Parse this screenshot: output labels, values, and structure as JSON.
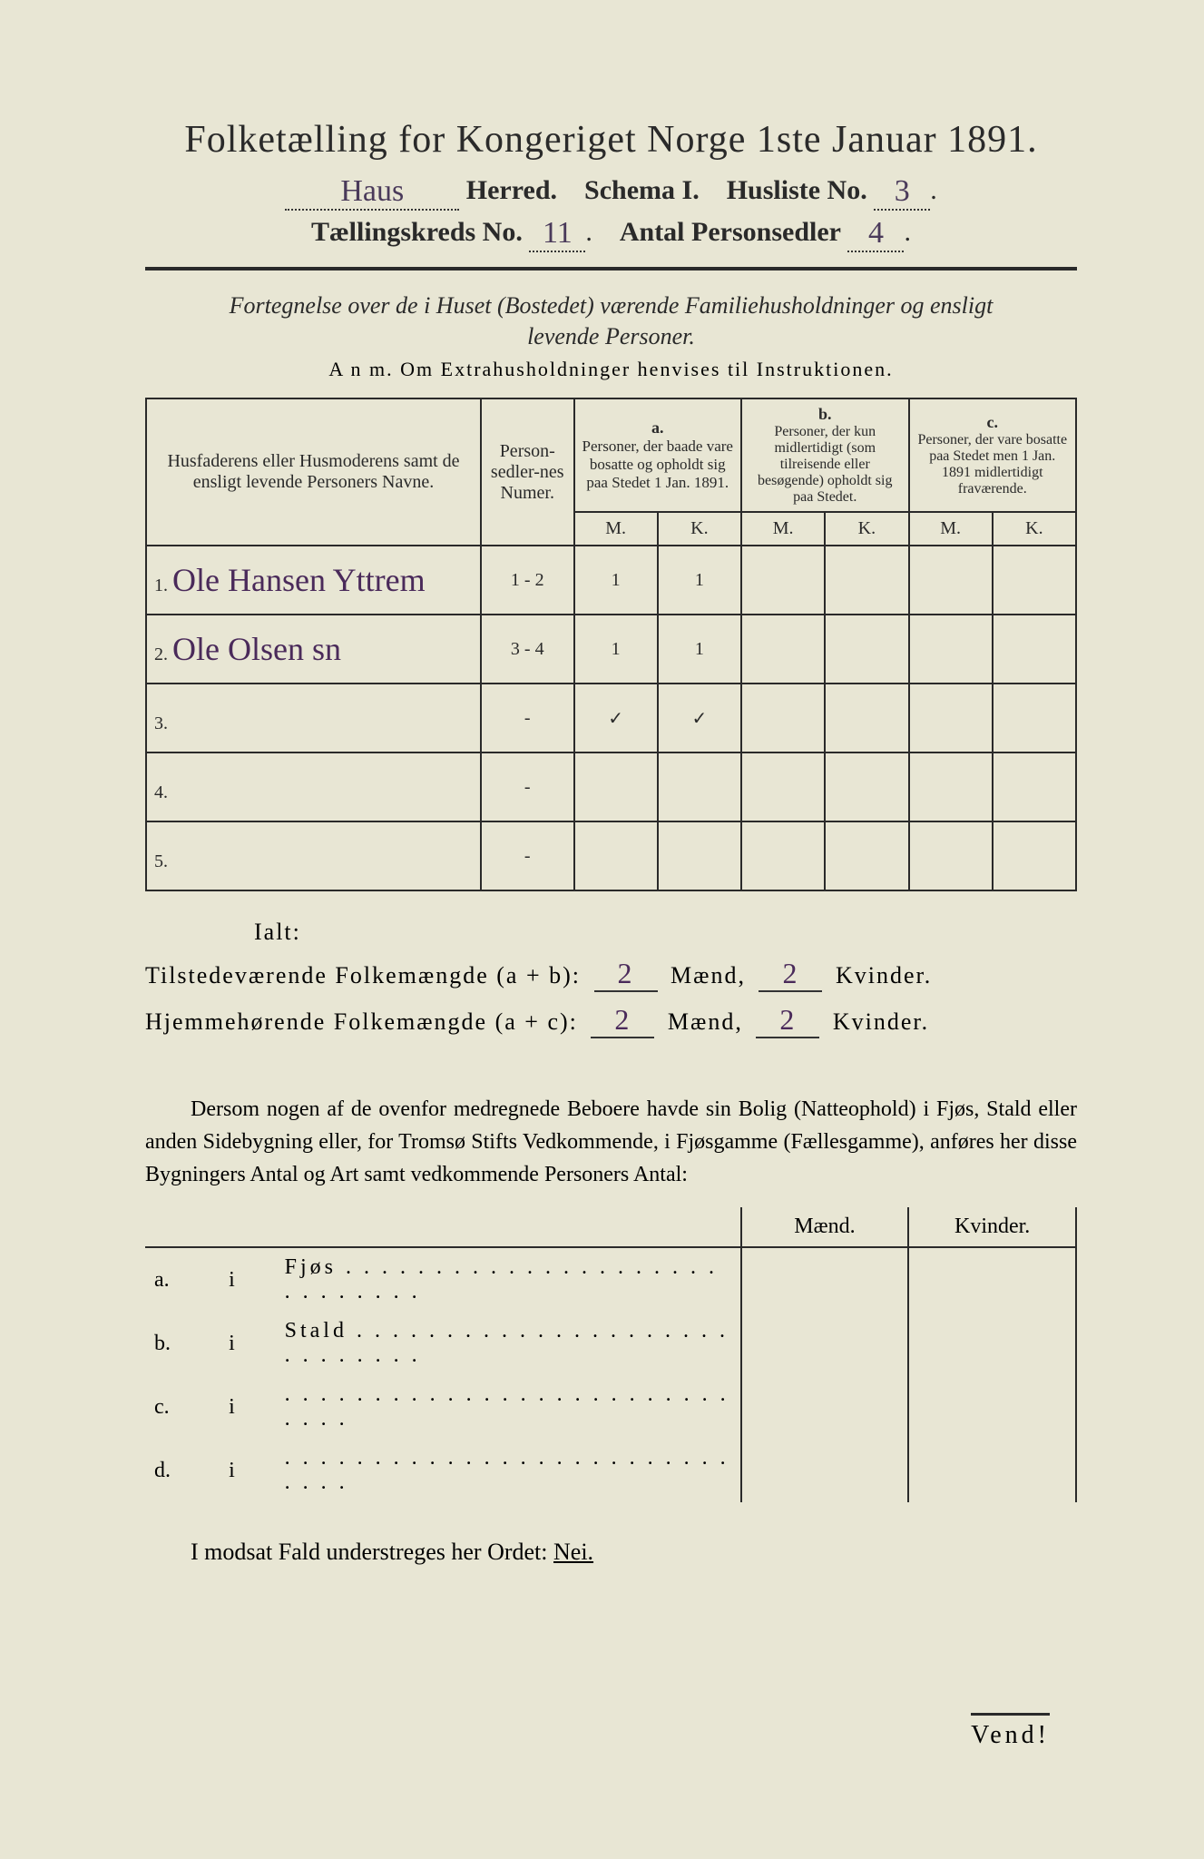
{
  "title": "Folketælling for Kongeriget Norge 1ste Januar 1891.",
  "header": {
    "herred_value": "Haus",
    "herred_label": "Herred.",
    "schema_label": "Schema I.",
    "husliste_label": "Husliste No.",
    "husliste_value": "3",
    "kreds_label": "Tællingskreds No.",
    "kreds_value": "11",
    "antal_label": "Antal Personsedler",
    "antal_value": "4"
  },
  "subtitle1": "Fortegnelse over de i Huset (Bostedet) værende Familiehusholdninger og ensligt",
  "subtitle2": "levende Personer.",
  "anm": "A n m.  Om Extrahusholdninger henvises til Instruktionen.",
  "columns": {
    "name": "Husfaderens eller Husmoderens samt de ensligt levende Personers Navne.",
    "sedler": "Person-sedler-nes Numer.",
    "a_label": "a.",
    "a_text": "Personer, der baade vare bosatte og opholdt sig paa Stedet 1 Jan. 1891.",
    "b_label": "b.",
    "b_text": "Personer, der kun midlertidigt (som tilreisende eller besøgende) opholdt sig paa Stedet.",
    "c_label": "c.",
    "c_text": "Personer, der vare bosatte paa Stedet men 1 Jan. 1891 midlertidigt fraværende.",
    "M": "M.",
    "K": "K."
  },
  "rows": [
    {
      "num": "1.",
      "name": "Ole Hansen Yttrem",
      "sedler": "1 - 2",
      "aM": "1",
      "aK": "1",
      "bM": "",
      "bK": "",
      "cM": "",
      "cK": ""
    },
    {
      "num": "2.",
      "name": "Ole Olsen  sn",
      "sedler": "3 - 4",
      "aM": "1",
      "aK": "1",
      "bM": "",
      "bK": "",
      "cM": "",
      "cK": ""
    },
    {
      "num": "3.",
      "name": "",
      "sedler": "-",
      "aM": "✓",
      "aK": "✓",
      "bM": "",
      "bK": "",
      "cM": "",
      "cK": ""
    },
    {
      "num": "4.",
      "name": "",
      "sedler": "-",
      "aM": "",
      "aK": "",
      "bM": "",
      "bK": "",
      "cM": "",
      "cK": ""
    },
    {
      "num": "5.",
      "name": "",
      "sedler": "-",
      "aM": "",
      "aK": "",
      "bM": "",
      "bK": "",
      "cM": "",
      "cK": ""
    }
  ],
  "ialt": {
    "label": "Ialt:",
    "line1_pre": "Tilstedeværende Folkemængde (a + b):",
    "line1_m": "2",
    "line1_k": "2",
    "line2_pre": "Hjemmehørende Folkemængde (a + c):",
    "line2_m": "2",
    "line2_k": "2",
    "maend": "Mænd,",
    "kvinder": "Kvinder."
  },
  "para": "Dersom nogen af de ovenfor medregnede Beboere havde sin Bolig (Natteophold) i Fjøs, Stald eller anden Sidebygning eller, for Tromsø Stifts Vedkommende, i Fjøsgamme (Fællesgamme), anføres her disse Bygningers Antal og Art samt vedkommende Personers Antal:",
  "buildings": {
    "maend": "Mænd.",
    "kvinder": "Kvinder.",
    "rows": [
      {
        "letter": "a.",
        "i": "i",
        "label": "Fjøs"
      },
      {
        "letter": "b.",
        "i": "i",
        "label": "Stald"
      },
      {
        "letter": "c.",
        "i": "i",
        "label": ""
      },
      {
        "letter": "d.",
        "i": "i",
        "label": ""
      }
    ]
  },
  "nei_line_pre": "I modsat Fald understreges her Ordet:",
  "nei": "Nei.",
  "vend": "Vend!"
}
